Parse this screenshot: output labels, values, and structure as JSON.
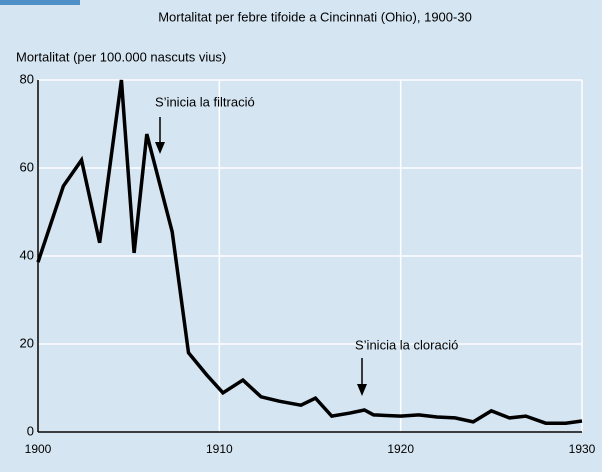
{
  "chart_data": {
    "type": "line",
    "title": "Mortalitat per febre tifoide a Cincinnati (Ohio), 1900-30",
    "y_label": "Mortalitat (per 100.000 nascuts vius)",
    "x": [
      1900,
      1901.4,
      1902.4,
      1903.4,
      1904.6,
      1905.3,
      1906,
      1907.4,
      1908.3,
      1909.3,
      1910.2,
      1911.3,
      1912.3,
      1913.3,
      1914.5,
      1915.3,
      1916.2,
      1917.2,
      1918,
      1918.5,
      1920,
      1921,
      1922,
      1923,
      1924,
      1925,
      1926,
      1926.9,
      1928,
      1929.1,
      1930
    ],
    "values": [
      38.6,
      55.9,
      61.8,
      43,
      80,
      40.7,
      67.7,
      45.5,
      18,
      13,
      8.9,
      11.8,
      8,
      7,
      6.1,
      7.7,
      3.6,
      4.3,
      5,
      3.9,
      3.6,
      3.9,
      3.4,
      3.2,
      2.3,
      4.8,
      3.2,
      3.6,
      2,
      2,
      2.5
    ],
    "color": "#000000",
    "xlim": [
      1900,
      1930
    ],
    "xticks": [
      1900,
      1910,
      1920,
      1930
    ],
    "ylim": [
      0,
      80
    ],
    "yticks": [
      0,
      20,
      40,
      60,
      80
    ],
    "grid": true,
    "annotations": [
      "S’inicia la filtració",
      "S’inicia la cloració"
    ]
  }
}
